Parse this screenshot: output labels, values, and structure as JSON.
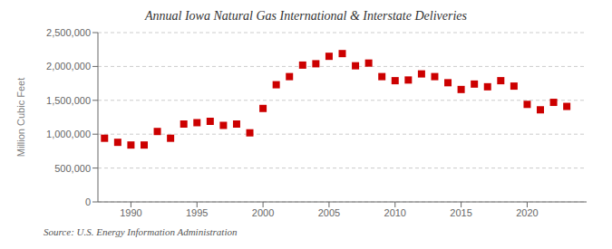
{
  "chart_data": {
    "type": "scatter",
    "title": "Annual Iowa Natural Gas International & Interstate Deliveries",
    "ylabel": "Million Cubic Feet",
    "annotations": [
      "Source: U.S. Energy Information Administration"
    ],
    "x": [
      1988,
      1989,
      1990,
      1991,
      1992,
      1993,
      1994,
      1995,
      1996,
      1997,
      1998,
      1999,
      2000,
      2001,
      2002,
      2003,
      2004,
      2005,
      2006,
      2007,
      2008,
      2009,
      2010,
      2011,
      2012,
      2013,
      2014,
      2015,
      2016,
      2017,
      2018,
      2019,
      2020,
      2021,
      2022,
      2023
    ],
    "values": [
      940000,
      880000,
      840000,
      840000,
      1040000,
      940000,
      1150000,
      1170000,
      1190000,
      1130000,
      1150000,
      1020000,
      1380000,
      1730000,
      1850000,
      2020000,
      2040000,
      2150000,
      2190000,
      2010000,
      2050000,
      1850000,
      1790000,
      1800000,
      1890000,
      1850000,
      1760000,
      1660000,
      1740000,
      1700000,
      1790000,
      1710000,
      1440000,
      1360000,
      1470000,
      1410000
    ],
    "color": "#cc0000",
    "marker": "square",
    "xlim": [
      1987.5,
      2024.5
    ],
    "xticks": [
      1990,
      1995,
      2000,
      2005,
      2010,
      2015,
      2020
    ],
    "ylim": [
      0,
      2500000
    ],
    "yticks": [
      0,
      {
        "value": 500000,
        "label": "500,000"
      },
      {
        "value": 1000000,
        "label": "1,000,000"
      },
      {
        "value": 1500000,
        "label": "1,500,000"
      },
      {
        "value": 2000000,
        "label": "2,000,000"
      },
      {
        "value": 2500000,
        "label": "2,500,000"
      }
    ],
    "grid": "y"
  }
}
